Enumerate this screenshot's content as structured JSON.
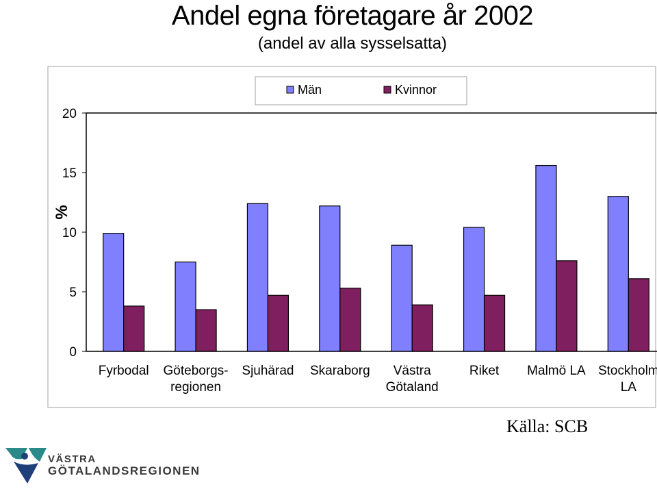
{
  "chart_data": {
    "type": "bar",
    "title": "Andel egna företagare år 2002",
    "subtitle": "(andel av alla sysselsatta)",
    "ylabel": "%",
    "xlabel": "",
    "ylim": [
      0,
      20
    ],
    "yticks": [
      0,
      5,
      10,
      15,
      20
    ],
    "grid": false,
    "legend_position": "top",
    "categories": [
      [
        "Fyrbodal"
      ],
      [
        "Göteborgs-",
        "regionen"
      ],
      [
        "Sjuhärad"
      ],
      [
        "Skaraborg"
      ],
      [
        "Västra",
        "Götaland"
      ],
      [
        "Riket"
      ],
      [
        "Malmö LA"
      ],
      [
        "Stockholm",
        "LA"
      ]
    ],
    "series": [
      {
        "name": "Män",
        "color": "#8080ff",
        "values": [
          9.9,
          7.5,
          12.4,
          12.2,
          8.9,
          10.4,
          15.6,
          13.0
        ]
      },
      {
        "name": "Kvinnor",
        "color": "#7f1f5f",
        "values": [
          3.8,
          3.5,
          4.7,
          5.3,
          3.9,
          4.7,
          7.6,
          6.1
        ]
      }
    ]
  },
  "source": "Källa: SCB",
  "logo": {
    "line1": "VÄSTRA",
    "line2": "GÖTALANDSREGIONEN",
    "colors": {
      "teal": "#2a8a8a",
      "navy": "#1f3f7a"
    }
  }
}
